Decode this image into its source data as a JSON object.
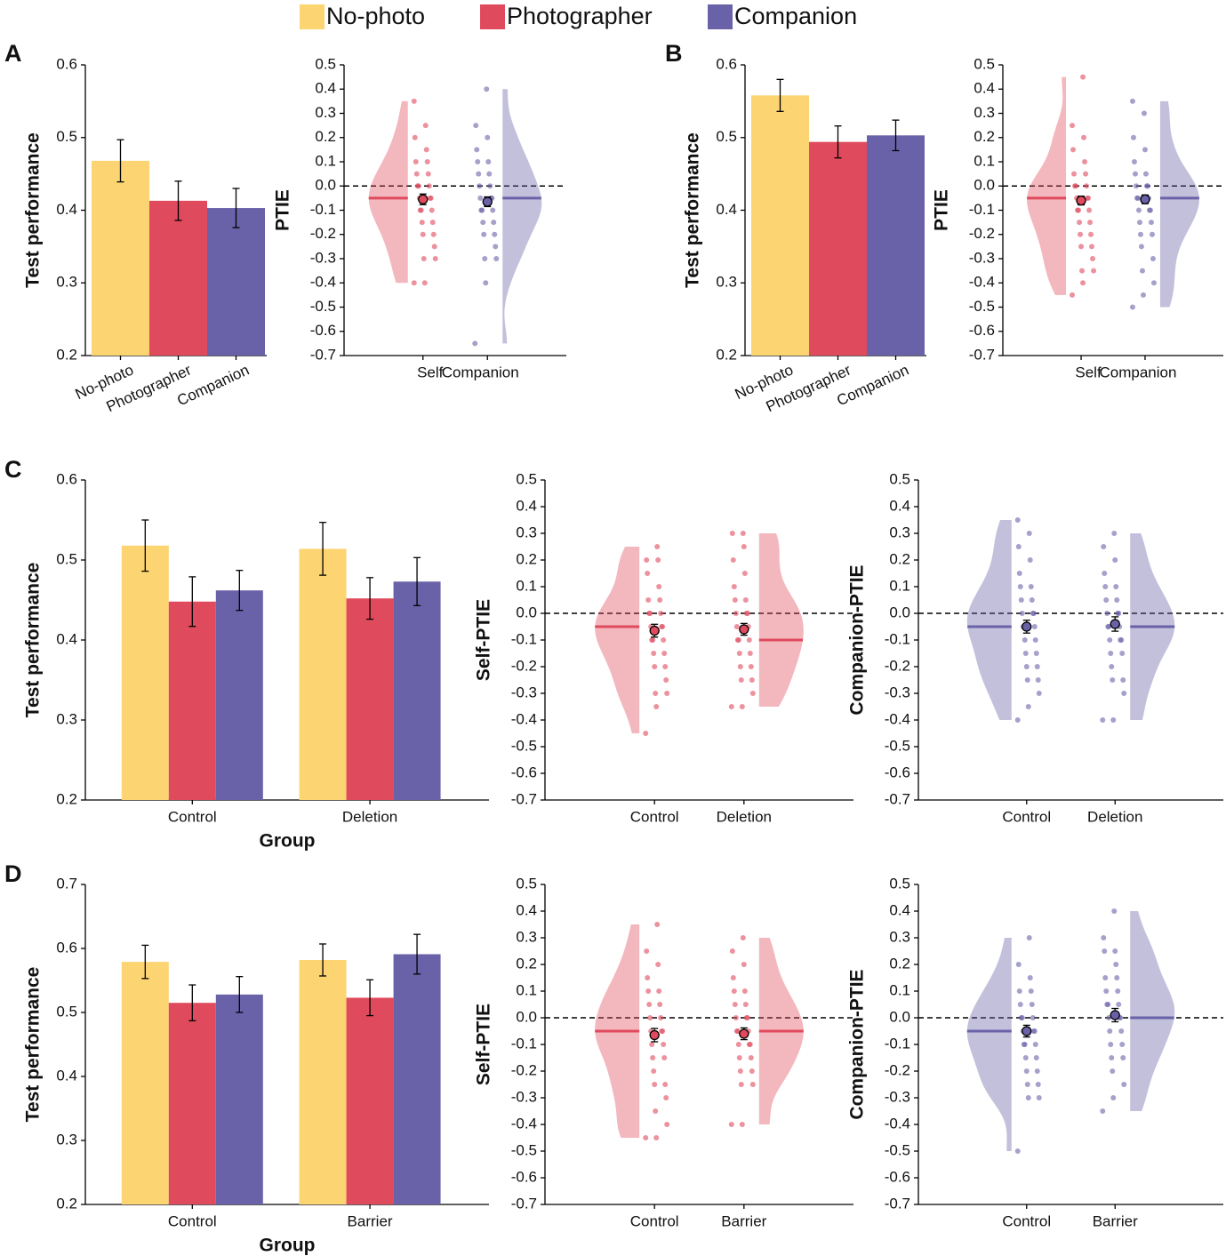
{
  "chart_data": [
    {
      "type": "bar",
      "panel": "A",
      "ylabel": "Test performance",
      "categories": [
        "No-photo",
        "Photographer",
        "Companion"
      ],
      "values": [
        0.468,
        0.413,
        0.403
      ],
      "errors": [
        0.029,
        0.027,
        0.027
      ],
      "colors": [
        "#fcd471",
        "#e04a5d",
        "#6a62a8"
      ],
      "ylim": [
        0.2,
        0.6
      ],
      "yticks": [
        0.2,
        0.3,
        0.4,
        0.5,
        0.6
      ],
      "rotate_labels": true
    },
    {
      "type": "raincloud",
      "ylabel": "PTIE",
      "categories": [
        "Self",
        "Companion"
      ],
      "ylim": [
        -0.7,
        0.5
      ],
      "yticks": [
        -0.7,
        -0.6,
        -0.5,
        -0.4,
        -0.3,
        -0.2,
        -0.1,
        {
          "value": 0,
          "label": "0.0"
        },
        0.1,
        0.2,
        0.3,
        0.4,
        0.5
      ],
      "refline": 0,
      "groups": [
        {
          "color": "#e04a5d",
          "median": -0.05,
          "mean": -0.055,
          "error": 0.022,
          "points": [
            -0.4,
            -0.4,
            -0.3,
            -0.3,
            -0.25,
            -0.2,
            -0.2,
            -0.15,
            -0.15,
            -0.1,
            -0.1,
            -0.1,
            -0.05,
            -0.05,
            -0.05,
            0,
            0,
            0,
            0.05,
            0.05,
            0.1,
            0.1,
            0.15,
            0.2,
            0.25,
            0.35
          ]
        },
        {
          "color": "#6a62a8",
          "median": -0.05,
          "mean": -0.065,
          "error": 0.02,
          "points": [
            -0.65,
            -0.4,
            -0.3,
            -0.3,
            -0.25,
            -0.2,
            -0.2,
            -0.15,
            -0.15,
            -0.1,
            -0.1,
            -0.1,
            -0.05,
            -0.05,
            -0.05,
            0,
            0,
            0.05,
            0.05,
            0.1,
            0.1,
            0.15,
            0.2,
            0.25,
            0.4
          ]
        }
      ]
    },
    {
      "type": "bar",
      "panel": "B",
      "ylabel": "Test performance",
      "categories": [
        "No-photo",
        "Photographer",
        "Companion"
      ],
      "values": [
        0.558,
        0.494,
        0.503
      ],
      "errors": [
        0.022,
        0.022,
        0.021
      ],
      "colors": [
        "#fcd471",
        "#e04a5d",
        "#6a62a8"
      ],
      "ylim": [
        0.2,
        0.6
      ],
      "yticks": [
        0.2,
        0.3,
        0.4,
        0.5,
        0.6
      ],
      "rotate_labels": true
    },
    {
      "type": "raincloud",
      "ylabel": "PTIE",
      "categories": [
        "Self",
        "Companion"
      ],
      "ylim": [
        -0.7,
        0.5
      ],
      "yticks": [
        -0.7,
        -0.6,
        -0.5,
        -0.4,
        -0.3,
        -0.2,
        -0.1,
        {
          "value": 0,
          "label": "0.0"
        },
        0.1,
        0.2,
        0.3,
        0.4,
        0.5
      ],
      "refline": 0,
      "groups": [
        {
          "color": "#e04a5d",
          "median": -0.05,
          "mean": -0.06,
          "error": 0.018,
          "points": [
            -0.45,
            -0.4,
            -0.35,
            -0.35,
            -0.3,
            -0.25,
            -0.25,
            -0.2,
            -0.2,
            -0.15,
            -0.15,
            -0.1,
            -0.1,
            -0.1,
            -0.05,
            -0.05,
            -0.05,
            0,
            0,
            0,
            0.05,
            0.05,
            0.1,
            0.15,
            0.2,
            0.25,
            0.45
          ]
        },
        {
          "color": "#6a62a8",
          "median": -0.05,
          "mean": -0.055,
          "error": 0.018,
          "points": [
            -0.5,
            -0.45,
            -0.4,
            -0.35,
            -0.3,
            -0.25,
            -0.2,
            -0.2,
            -0.15,
            -0.15,
            -0.1,
            -0.1,
            -0.1,
            -0.05,
            -0.05,
            -0.05,
            0,
            0,
            0,
            0.05,
            0.05,
            0.1,
            0.15,
            0.2,
            0.3,
            0.35
          ]
        }
      ]
    },
    {
      "type": "grouped_bar",
      "panel": "C",
      "ylabel": "Test performance",
      "xlabel": "Group",
      "categories": [
        "Control",
        "Deletion"
      ],
      "ylim": [
        0.2,
        0.6
      ],
      "yticks": [
        0.2,
        0.3,
        0.4,
        0.5,
        0.6
      ],
      "series": [
        {
          "name": "No-photo",
          "color": "#fcd471",
          "values": [
            0.518,
            0.514
          ],
          "errors": [
            0.032,
            0.033
          ]
        },
        {
          "name": "Photographer",
          "color": "#e04a5d",
          "values": [
            0.448,
            0.452
          ],
          "errors": [
            0.031,
            0.026
          ]
        },
        {
          "name": "Companion",
          "color": "#6a62a8",
          "values": [
            0.462,
            0.473
          ],
          "errors": [
            0.025,
            0.03
          ]
        }
      ]
    },
    {
      "type": "raincloud",
      "ylabel": "Self-PTIE",
      "categories": [
        "Control",
        "Deletion"
      ],
      "ylim": [
        -0.7,
        0.5
      ],
      "yticks": [
        -0.7,
        -0.6,
        -0.5,
        -0.4,
        -0.3,
        -0.2,
        -0.1,
        {
          "value": 0,
          "label": "0.0"
        },
        0.1,
        0.2,
        0.3,
        0.4,
        0.5
      ],
      "refline": 0,
      "groups": [
        {
          "color": "#e04a5d",
          "median": -0.05,
          "mean": -0.065,
          "error": 0.024,
          "points": [
            -0.45,
            -0.35,
            -0.3,
            -0.3,
            -0.25,
            -0.2,
            -0.2,
            -0.15,
            -0.15,
            -0.1,
            -0.1,
            -0.1,
            -0.05,
            -0.05,
            -0.05,
            0,
            0,
            0,
            0.05,
            0.05,
            0.1,
            0.15,
            0.2,
            0.2,
            0.25
          ]
        },
        {
          "color": "#e04a5d",
          "median": -0.1,
          "mean": -0.06,
          "error": 0.022,
          "points": [
            -0.35,
            -0.35,
            -0.3,
            -0.25,
            -0.25,
            -0.2,
            -0.2,
            -0.15,
            -0.15,
            -0.1,
            -0.1,
            -0.1,
            -0.05,
            -0.05,
            0,
            0,
            0,
            0.05,
            0.05,
            0.1,
            0.15,
            0.2,
            0.25,
            0.3,
            0.3
          ]
        }
      ]
    },
    {
      "type": "raincloud",
      "ylabel": "Companion-PTIE",
      "categories": [
        "Control",
        "Deletion"
      ],
      "ylim": [
        -0.7,
        0.5
      ],
      "yticks": [
        -0.7,
        -0.6,
        -0.5,
        -0.4,
        -0.3,
        -0.2,
        -0.1,
        {
          "value": 0,
          "label": "0.0"
        },
        0.1,
        0.2,
        0.3,
        0.4,
        0.5
      ],
      "refline": 0,
      "groups": [
        {
          "color": "#6a62a8",
          "median": -0.05,
          "mean": -0.05,
          "error": 0.024,
          "points": [
            -0.4,
            -0.35,
            -0.3,
            -0.25,
            -0.25,
            -0.2,
            -0.2,
            -0.15,
            -0.15,
            -0.1,
            -0.1,
            -0.05,
            -0.05,
            -0.05,
            0,
            0,
            0,
            0.05,
            0.05,
            0.1,
            0.1,
            0.15,
            0.2,
            0.25,
            0.3,
            0.35
          ]
        },
        {
          "color": "#6a62a8",
          "median": -0.05,
          "mean": -0.04,
          "error": 0.027,
          "points": [
            -0.4,
            -0.4,
            -0.3,
            -0.25,
            -0.25,
            -0.2,
            -0.15,
            -0.15,
            -0.1,
            -0.1,
            -0.1,
            -0.05,
            -0.05,
            -0.05,
            0,
            0,
            0,
            0.05,
            0.05,
            0.1,
            0.1,
            0.15,
            0.2,
            0.25,
            0.3
          ]
        }
      ]
    },
    {
      "type": "grouped_bar",
      "panel": "D",
      "ylabel": "Test performance",
      "xlabel": "Group",
      "categories": [
        "Control",
        "Barrier"
      ],
      "ylim": [
        0.2,
        0.7
      ],
      "yticks": [
        0.2,
        0.3,
        0.4,
        0.5,
        0.6,
        0.7
      ],
      "series": [
        {
          "name": "No-photo",
          "color": "#fcd471",
          "values": [
            0.579,
            0.582
          ],
          "errors": [
            0.026,
            0.025
          ]
        },
        {
          "name": "Photographer",
          "color": "#e04a5d",
          "values": [
            0.515,
            0.523
          ],
          "errors": [
            0.028,
            0.028
          ]
        },
        {
          "name": "Companion",
          "color": "#6a62a8",
          "values": [
            0.528,
            0.591
          ],
          "errors": [
            0.028,
            0.031
          ]
        }
      ]
    },
    {
      "type": "raincloud",
      "ylabel": "Self-PTIE",
      "categories": [
        "Control",
        "Barrier"
      ],
      "ylim": [
        -0.7,
        0.5
      ],
      "yticks": [
        -0.7,
        -0.6,
        -0.5,
        -0.4,
        -0.3,
        -0.2,
        -0.1,
        {
          "value": 0,
          "label": "0.0"
        },
        0.1,
        0.2,
        0.3,
        0.4,
        0.5
      ],
      "refline": 0,
      "groups": [
        {
          "color": "#e04a5d",
          "median": -0.05,
          "mean": -0.065,
          "error": 0.025,
          "points": [
            -0.45,
            -0.45,
            -0.4,
            -0.35,
            -0.3,
            -0.25,
            -0.25,
            -0.2,
            -0.15,
            -0.15,
            -0.1,
            -0.1,
            -0.05,
            -0.05,
            -0.05,
            0,
            0,
            0.05,
            0.05,
            0.1,
            0.1,
            0.15,
            0.2,
            0.25,
            0.35
          ]
        },
        {
          "color": "#e04a5d",
          "median": -0.05,
          "mean": -0.06,
          "error": 0.022,
          "points": [
            -0.4,
            -0.4,
            -0.25,
            -0.25,
            -0.2,
            -0.2,
            -0.15,
            -0.15,
            -0.1,
            -0.1,
            -0.1,
            -0.05,
            -0.05,
            -0.05,
            0,
            0,
            0,
            0.05,
            0.05,
            0.1,
            0.1,
            0.15,
            0.2,
            0.25,
            0.3
          ]
        }
      ]
    },
    {
      "type": "raincloud",
      "ylabel": "Companion-PTIE",
      "categories": [
        "Control",
        "Barrier"
      ],
      "ylim": [
        -0.7,
        0.5
      ],
      "yticks": [
        -0.7,
        -0.6,
        -0.5,
        -0.4,
        -0.3,
        -0.2,
        -0.1,
        {
          "value": 0,
          "label": "0.0"
        },
        0.1,
        0.2,
        0.3,
        0.4,
        0.5
      ],
      "refline": 0,
      "groups": [
        {
          "color": "#6a62a8",
          "median": -0.05,
          "mean": -0.05,
          "error": 0.022,
          "points": [
            -0.5,
            -0.3,
            -0.3,
            -0.25,
            -0.25,
            -0.2,
            -0.2,
            -0.15,
            -0.15,
            -0.1,
            -0.1,
            -0.1,
            -0.05,
            -0.05,
            -0.05,
            0,
            0,
            0,
            0.05,
            0.05,
            0.1,
            0.1,
            0.15,
            0.2,
            0.3
          ]
        },
        {
          "color": "#6a62a8",
          "median": 0,
          "mean": 0.01,
          "error": 0.025,
          "points": [
            -0.35,
            -0.3,
            -0.25,
            -0.2,
            -0.15,
            -0.15,
            -0.1,
            -0.1,
            -0.05,
            -0.05,
            0,
            0,
            0,
            0.05,
            0.05,
            0.05,
            0.1,
            0.1,
            0.15,
            0.15,
            0.2,
            0.25,
            0.25,
            0.3,
            0.4
          ]
        }
      ]
    }
  ]
}
